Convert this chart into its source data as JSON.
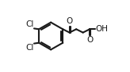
{
  "bg_color": "#ffffff",
  "line_color": "#1a1a1a",
  "line_width": 1.5,
  "font_size": 7.5,
  "font_color": "#1a1a1a",
  "figsize": [
    1.64,
    0.92
  ],
  "dpi": 100,
  "cl1_label": "Cl",
  "cl2_label": "Cl",
  "oh_label": "OH",
  "o1_label": "O",
  "o2_label": "O"
}
